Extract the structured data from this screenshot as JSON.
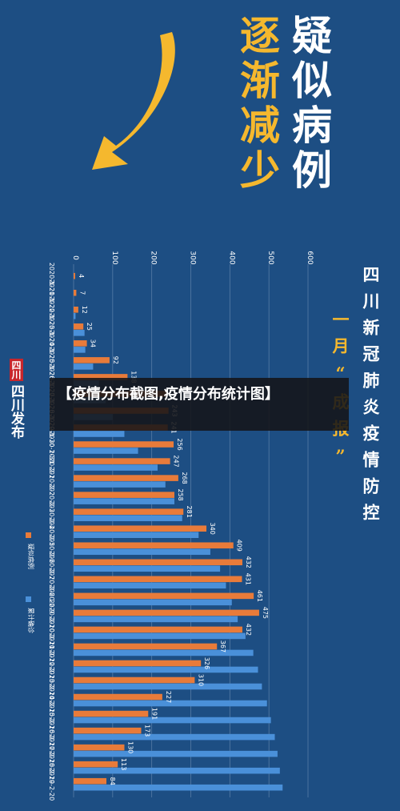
{
  "headline": {
    "line1": "疑似病例",
    "line2": "逐渐减少"
  },
  "subtitle": {
    "line1": "四川新冠肺炎疫情防控",
    "line2": "一月“成报”"
  },
  "brand": {
    "mark": "四川",
    "text": "四川发布"
  },
  "caption": "【疫情分布截图,疫情分布统计图】",
  "colors": {
    "background": "#1d4e83",
    "suspected": "#e87b3a",
    "confirmed": "#4a90d9",
    "accent": "#f5b82e"
  },
  "chart_data": {
    "type": "bar",
    "orientation": "horizontal",
    "categories": [
      "2020-1-21",
      "2020-1-22",
      "2020-1-23",
      "2020-1-24",
      "2020-1-25",
      "2020-1-26",
      "2020-1-27",
      "2020-1-28",
      "2020-1-29",
      "2020-1-30",
      "2020-1-31",
      "2020-2-1",
      "2020-2-2",
      "2020-2-3",
      "2020-2-4",
      "2020-2-5",
      "2020-2-6",
      "2020-2-7",
      "2020-2-8",
      "2020-2-9",
      "2020-2-10",
      "2020-2-11",
      "2020-2-12",
      "2020-2-13",
      "2020-2-14",
      "2020-2-15",
      "2020-2-16",
      "2020-2-17",
      "2020-2-18",
      "2020-2-19",
      "2020-2-20"
    ],
    "series": [
      {
        "name": "疑似病例",
        "values": [
          4,
          7,
          12,
          25,
          34,
          92,
          138,
          238,
          243,
          241,
          256,
          247,
          268,
          258,
          281,
          340,
          409,
          432,
          431,
          461,
          475,
          432,
          367,
          326,
          310,
          227,
          191,
          173,
          130,
          113,
          84
        ],
        "show_labels": [
          true,
          true,
          true,
          true,
          true,
          true,
          true,
          false,
          true,
          true,
          true,
          true,
          true,
          true,
          true,
          true,
          true,
          true,
          true,
          true,
          true,
          true,
          true,
          true,
          true,
          true,
          true,
          true,
          true,
          true,
          true
        ]
      },
      {
        "name": "累计确诊",
        "values": [
          0,
          0,
          5,
          28,
          30,
          50,
          65,
          82,
          100,
          130,
          165,
          215,
          235,
          258,
          278,
          320,
          350,
          375,
          390,
          405,
          420,
          440,
          460,
          472,
          482,
          495,
          505,
          515,
          522,
          528,
          535
        ]
      }
    ],
    "xlim": [
      0,
      600
    ],
    "xticks": [
      "0",
      "100",
      "200",
      "300",
      "400",
      "500",
      "600"
    ],
    "grid": true,
    "legend": {
      "position": "bottom-left",
      "entries": [
        "疑似病例",
        "累计确诊"
      ]
    }
  }
}
